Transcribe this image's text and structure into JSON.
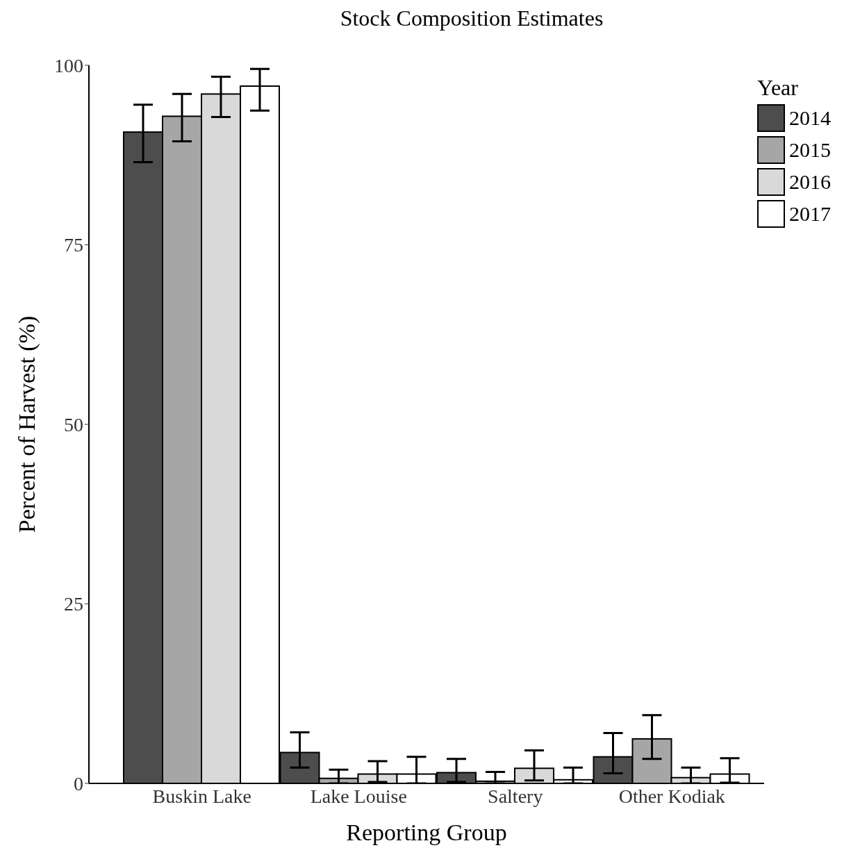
{
  "chart_data": {
    "type": "bar",
    "title": "Stock Composition Estimates",
    "xlabel": "Reporting Group",
    "ylabel": "Percent of Harvest (%)",
    "legend_title": "Year",
    "categories": [
      "Buskin Lake",
      "Lake Louise",
      "Saltery",
      "Other Kodiak"
    ],
    "series": [
      {
        "name": "2014",
        "color": "#4d4d4d",
        "values": [
          90.7,
          4.3,
          1.5,
          3.7
        ],
        "errors": [
          [
            86.5,
            94.5
          ],
          [
            2.2,
            7.1
          ],
          [
            0.2,
            3.4
          ],
          [
            1.4,
            7.0
          ]
        ]
      },
      {
        "name": "2015",
        "color": "#a6a6a6",
        "values": [
          92.9,
          0.7,
          0.3,
          6.2
        ],
        "errors": [
          [
            89.4,
            96.0
          ],
          [
            0,
            1.9
          ],
          [
            0,
            1.6
          ],
          [
            3.4,
            9.5
          ]
        ]
      },
      {
        "name": "2016",
        "color": "#d9d9d9",
        "values": [
          96.0,
          1.3,
          2.1,
          0.8
        ],
        "errors": [
          [
            92.8,
            98.4
          ],
          [
            0.2,
            3.1
          ],
          [
            0.4,
            4.6
          ],
          [
            0,
            2.2
          ]
        ]
      },
      {
        "name": "2017",
        "color": "#ffffff",
        "values": [
          97.1,
          1.3,
          0.5,
          1.3
        ],
        "errors": [
          [
            93.7,
            99.5
          ],
          [
            0,
            3.7
          ],
          [
            0,
            2.2
          ],
          [
            0.1,
            3.5
          ]
        ]
      }
    ],
    "ylim": [
      0,
      100
    ],
    "yticks": [
      0,
      25,
      50,
      75,
      100
    ],
    "grid": false,
    "legend": "top right"
  }
}
